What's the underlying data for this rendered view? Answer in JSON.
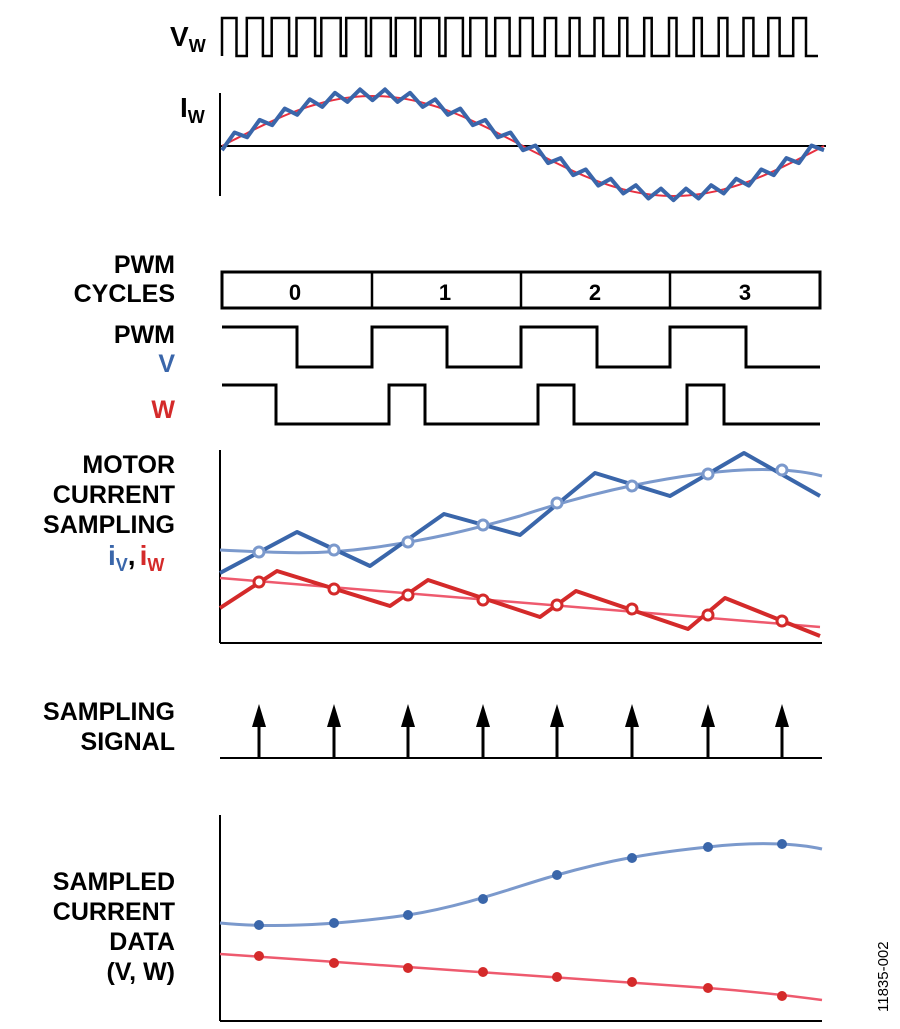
{
  "top": {
    "vw_main": "V",
    "vw_sub": "W",
    "iw_main": "I",
    "iw_sub": "W"
  },
  "pwm_cycles": {
    "label_line1": "PWM",
    "label_line2": "CYCLES",
    "cycles": [
      "0",
      "1",
      "2",
      "3"
    ]
  },
  "pwm": {
    "label_line1": "PWM",
    "label_v": "V",
    "label_w": "W"
  },
  "motor_current": {
    "label_line1": "MOTOR",
    "label_line2": "CURRENT",
    "label_line3": "SAMPLING",
    "iv_main": "i",
    "iv_sub": "V",
    "comma": ",",
    "iw_main": "i",
    "iw_sub": "W"
  },
  "sampling_signal": {
    "label_line1": "SAMPLING",
    "label_line2": "SIGNAL",
    "arrow_count": 8
  },
  "sampled_data": {
    "label_line1": "SAMPLED",
    "label_line2": "CURRENT",
    "label_line3": "DATA",
    "label_line4": "(V, W)"
  },
  "figure_id": "11835-002",
  "colors": {
    "blue": "#3a66aa",
    "light_blue": "#7b99cc",
    "red": "#d42a2a",
    "pink": "#ee5a6e",
    "black": "#000000"
  }
}
